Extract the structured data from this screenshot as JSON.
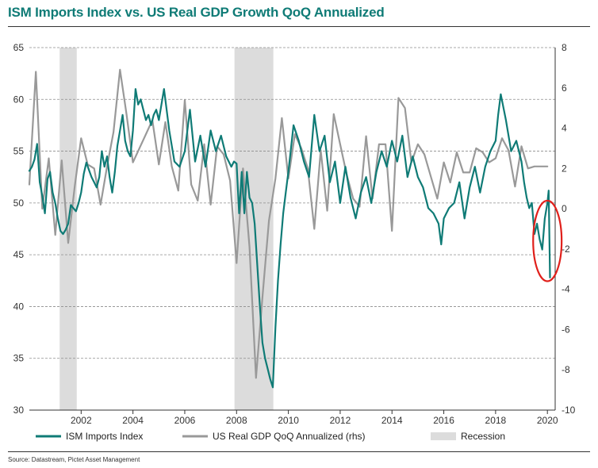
{
  "title": "ISM Imports Index vs. US Real GDP Growth QoQ Annualized",
  "source": "Source: Datastream, Pictet Asset Management",
  "colors": {
    "ism": "#0f7b76",
    "gdp": "#999999",
    "recession": "#dcdcdc",
    "highlight": "#e0201b",
    "title": "#0f7b76"
  },
  "chart_data": {
    "type": "line",
    "title": "ISM Imports Index vs. US Real GDP Growth QoQ Annualized",
    "xlim": [
      2000.0,
      2020.3
    ],
    "x_ticks": [
      2002,
      2004,
      2006,
      2008,
      2010,
      2012,
      2014,
      2016,
      2018,
      2020
    ],
    "x_tick_labels": [
      "2002",
      "2004",
      "2006",
      "2008",
      "2010",
      "2012",
      "2014",
      "2016",
      "2018",
      "2020"
    ],
    "left_axis": {
      "min": 30,
      "max": 65,
      "ticks": [
        30,
        35,
        40,
        45,
        50,
        55,
        60,
        65
      ],
      "tick_labels": [
        "30",
        "35",
        "40",
        "45",
        "50",
        "55",
        "60",
        "65"
      ]
    },
    "right_axis": {
      "min": -10,
      "max": 8,
      "ticks": [
        -10,
        -8,
        -6,
        -4,
        -2,
        0,
        2,
        4,
        6,
        8
      ],
      "tick_labels": [
        "-10",
        "-8",
        "-6",
        "-4",
        "-2",
        "0",
        "2",
        "4",
        "6",
        "8"
      ]
    },
    "recessions": [
      [
        2001.17,
        2001.83
      ],
      [
        2007.92,
        2009.42
      ]
    ],
    "highlight_ellipse": {
      "center": [
        2020.0,
        -1.6
      ],
      "span_years": 1.1,
      "span_units": 4.0
    },
    "legend": [
      "ISM Imports Index",
      "US Real GDP QoQ Annualized (rhs)",
      "Recession"
    ],
    "grid": true,
    "series": [
      {
        "name": "ISM Imports Index",
        "axis": "left",
        "x": [
          2000.0,
          2000.1,
          2000.2,
          2000.3,
          2000.4,
          2000.5,
          2000.6,
          2000.7,
          2000.8,
          2000.9,
          2001.0,
          2001.1,
          2001.2,
          2001.3,
          2001.4,
          2001.5,
          2001.6,
          2001.7,
          2001.8,
          2001.9,
          2002.0,
          2002.1,
          2002.2,
          2002.3,
          2002.4,
          2002.5,
          2002.6,
          2002.7,
          2002.8,
          2002.9,
          2003.0,
          2003.1,
          2003.2,
          2003.3,
          2003.4,
          2003.5,
          2003.6,
          2003.7,
          2003.8,
          2003.9,
          2004.0,
          2004.1,
          2004.2,
          2004.3,
          2004.4,
          2004.5,
          2004.6,
          2004.7,
          2004.8,
          2004.9,
          2005.0,
          2005.2,
          2005.4,
          2005.6,
          2005.8,
          2006.0,
          2006.2,
          2006.4,
          2006.6,
          2006.8,
          2007.0,
          2007.2,
          2007.4,
          2007.6,
          2007.8,
          2007.9,
          2008.0,
          2008.1,
          2008.2,
          2008.3,
          2008.4,
          2008.5,
          2008.6,
          2008.7,
          2008.8,
          2008.9,
          2009.0,
          2009.1,
          2009.2,
          2009.3,
          2009.4,
          2009.5,
          2009.6,
          2009.7,
          2009.8,
          2009.9,
          2010.0,
          2010.2,
          2010.4,
          2010.6,
          2010.8,
          2011.0,
          2011.2,
          2011.4,
          2011.6,
          2011.8,
          2012.0,
          2012.2,
          2012.4,
          2012.6,
          2012.8,
          2013.0,
          2013.2,
          2013.4,
          2013.6,
          2013.8,
          2014.0,
          2014.2,
          2014.4,
          2014.6,
          2014.8,
          2015.0,
          2015.2,
          2015.4,
          2015.6,
          2015.8,
          2015.9,
          2016.0,
          2016.2,
          2016.4,
          2016.6,
          2016.8,
          2017.0,
          2017.2,
          2017.4,
          2017.6,
          2017.8,
          2018.0,
          2018.1,
          2018.2,
          2018.4,
          2018.6,
          2018.8,
          2019.0,
          2019.1,
          2019.2,
          2019.3,
          2019.4,
          2019.5,
          2019.6,
          2019.7,
          2019.8,
          2019.9,
          2020.0,
          2020.05,
          2020.1
        ],
        "values": [
          53.1,
          53.5,
          54.2,
          55.7,
          52.0,
          50.7,
          49.0,
          52.3,
          53.0,
          51.0,
          50.0,
          48.5,
          47.3,
          47.0,
          47.4,
          48.0,
          49.8,
          49.5,
          49.2,
          50.0,
          51.0,
          52.8,
          53.9,
          53.2,
          52.5,
          52.0,
          51.5,
          52.5,
          55.0,
          53.5,
          54.5,
          52.5,
          51.0,
          53.0,
          55.5,
          57.0,
          58.5,
          56.0,
          55.0,
          54.5,
          57.0,
          61.0,
          59.5,
          60.0,
          59.0,
          58.0,
          58.5,
          57.5,
          58.5,
          59.0,
          58.0,
          61.0,
          57.0,
          54.0,
          53.5,
          55.0,
          59.0,
          54.0,
          56.5,
          53.5,
          57.0,
          55.0,
          56.5,
          54.5,
          53.5,
          54.0,
          53.8,
          49.0,
          53.0,
          49.0,
          53.0,
          50.5,
          50.0,
          48.0,
          44.0,
          40.0,
          36.5,
          35.0,
          34.0,
          33.0,
          32.2,
          38.0,
          42.5,
          46.0,
          49.0,
          51.0,
          53.0,
          57.5,
          56.0,
          54.0,
          52.5,
          58.5,
          55.0,
          56.5,
          52.0,
          54.0,
          50.0,
          53.5,
          50.5,
          48.5,
          51.0,
          52.5,
          50.0,
          53.0,
          55.0,
          53.5,
          56.0,
          54.0,
          56.5,
          52.5,
          54.5,
          52.5,
          51.5,
          49.5,
          49.0,
          48.0,
          46.0,
          48.5,
          49.5,
          50.0,
          52.0,
          48.5,
          51.5,
          53.5,
          51.0,
          53.5,
          55.0,
          56.0,
          58.5,
          60.5,
          58.0,
          55.0,
          56.0,
          54.0,
          52.0,
          50.5,
          49.5,
          50.0,
          47.0,
          48.0,
          46.5,
          45.5,
          48.5,
          50.0,
          51.2,
          42.8
        ]
      },
      {
        "name": "US Real GDP QoQ Annualized (rhs)",
        "axis": "right",
        "x": [
          2000.0,
          2000.25,
          2000.5,
          2000.75,
          2001.0,
          2001.25,
          2001.5,
          2001.75,
          2002.0,
          2002.25,
          2002.5,
          2002.75,
          2003.0,
          2003.25,
          2003.5,
          2003.75,
          2004.0,
          2004.25,
          2004.5,
          2004.75,
          2005.0,
          2005.25,
          2005.5,
          2005.75,
          2006.0,
          2006.25,
          2006.5,
          2006.75,
          2007.0,
          2007.25,
          2007.5,
          2007.75,
          2008.0,
          2008.25,
          2008.5,
          2008.75,
          2009.0,
          2009.25,
          2009.5,
          2009.75,
          2010.0,
          2010.25,
          2010.5,
          2010.75,
          2011.0,
          2011.25,
          2011.5,
          2011.75,
          2012.0,
          2012.25,
          2012.5,
          2012.75,
          2013.0,
          2013.25,
          2013.5,
          2013.75,
          2014.0,
          2014.25,
          2014.5,
          2014.75,
          2015.0,
          2015.25,
          2015.5,
          2015.75,
          2016.0,
          2016.25,
          2016.5,
          2016.75,
          2017.0,
          2017.25,
          2017.5,
          2017.75,
          2018.0,
          2018.25,
          2018.5,
          2018.75,
          2019.0,
          2019.25,
          2019.5,
          2019.75,
          2020.0
        ],
        "values": [
          1.2,
          6.8,
          0.0,
          2.5,
          -1.3,
          2.4,
          -1.7,
          1.1,
          3.5,
          2.2,
          2.0,
          0.2,
          2.1,
          3.8,
          6.9,
          4.7,
          2.3,
          3.0,
          3.7,
          4.4,
          2.2,
          4.3,
          2.1,
          0.9,
          5.4,
          1.2,
          0.4,
          3.2,
          0.2,
          3.1,
          2.7,
          1.4,
          -2.7,
          2.0,
          -1.9,
          -8.4,
          -4.4,
          -0.6,
          1.5,
          4.5,
          1.5,
          3.7,
          3.0,
          2.0,
          -1.0,
          2.9,
          -0.1,
          4.7,
          3.2,
          1.7,
          0.5,
          0.1,
          3.6,
          0.5,
          3.2,
          3.2,
          -1.1,
          5.5,
          5.0,
          2.3,
          3.2,
          2.7,
          1.6,
          0.5,
          2.3,
          1.3,
          2.8,
          1.8,
          1.8,
          3.0,
          2.8,
          2.3,
          2.5,
          3.5,
          2.9,
          1.1,
          3.1,
          2.0,
          2.1,
          2.1,
          2.1
        ]
      }
    ]
  }
}
